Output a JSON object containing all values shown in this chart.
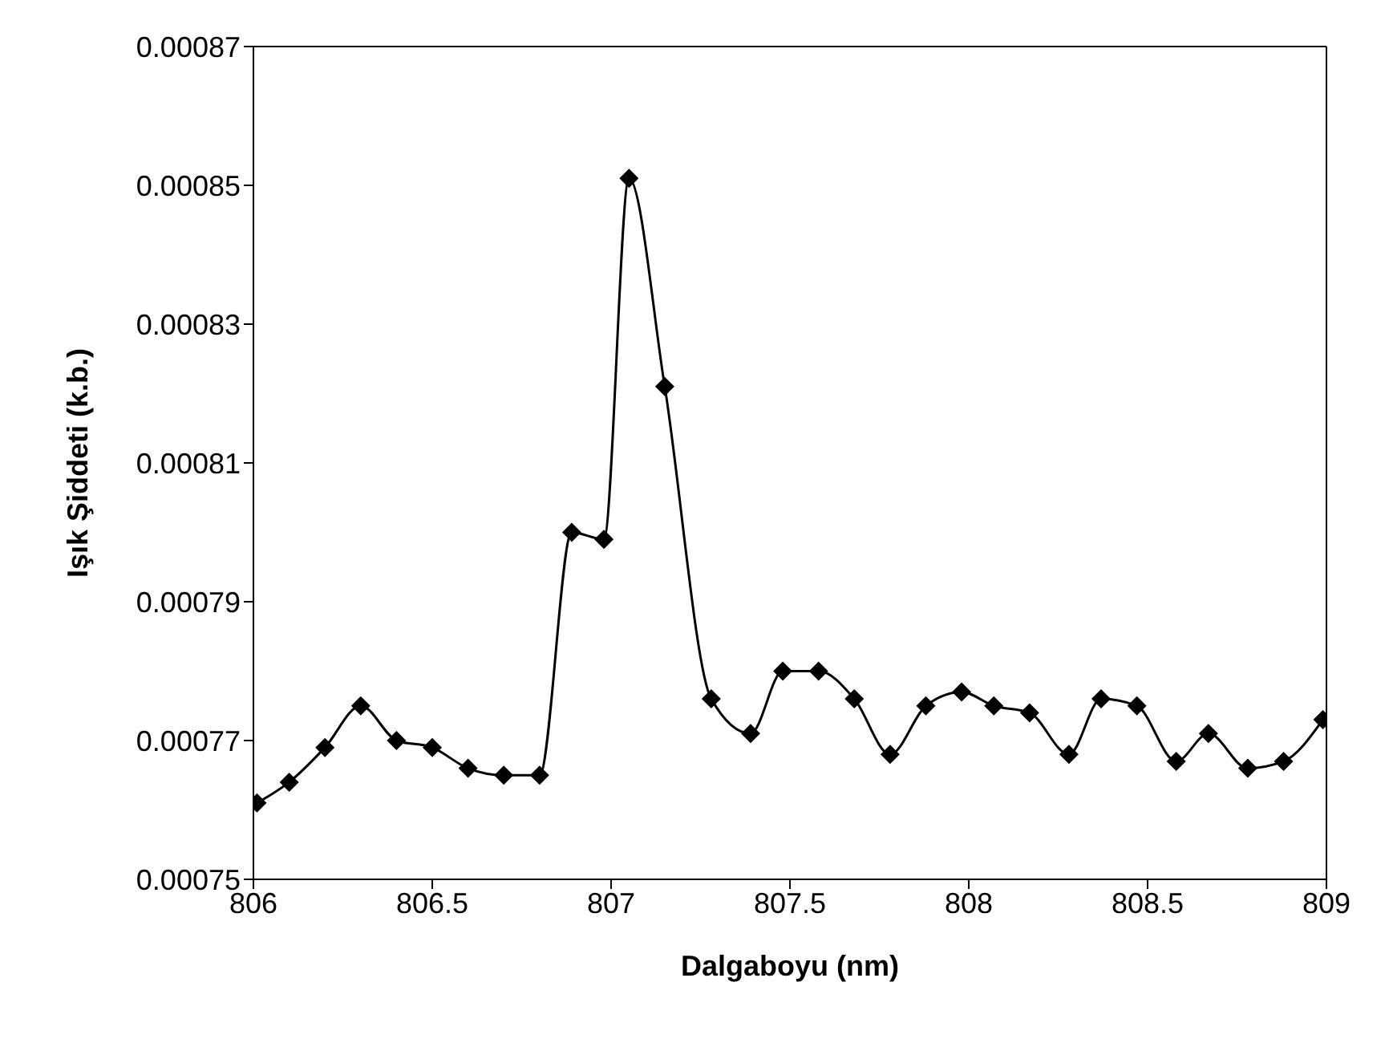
{
  "chart_data": {
    "type": "line",
    "xlabel": "Dalgaboyu (nm)",
    "ylabel": "Işık Şiddeti (k.b.)",
    "xlim": [
      806,
      809
    ],
    "xticks": [
      806,
      806.5,
      807,
      807.5,
      808,
      808.5,
      809
    ],
    "ylim": [
      0.00075,
      0.00087
    ],
    "yticks": [
      0.00075,
      0.00077,
      0.00079,
      0.00081,
      0.00083,
      0.00085,
      0.00087
    ],
    "legend": false,
    "marker": "diamond",
    "line_style": "solid",
    "series": [
      {
        "color": "#000000",
        "x": [
          806.01,
          806.1,
          806.2,
          806.3,
          806.4,
          806.5,
          806.6,
          806.7,
          806.8,
          806.89,
          806.98,
          807.05,
          807.15,
          807.28,
          807.39,
          807.48,
          807.58,
          807.68,
          807.78,
          807.88,
          807.98,
          808.07,
          808.17,
          808.28,
          808.37,
          808.47,
          808.58,
          808.67,
          808.78,
          808.88,
          808.99
        ],
        "values": [
          0.000761,
          0.000764,
          0.000769,
          0.000775,
          0.00077,
          0.000769,
          0.000766,
          0.000765,
          0.000765,
          0.0008,
          0.000799,
          0.000851,
          0.000821,
          0.000776,
          0.000771,
          0.00078,
          0.00078,
          0.000776,
          0.000768,
          0.000775,
          0.000777,
          0.000775,
          0.000774,
          0.000768,
          0.000776,
          0.000775,
          0.000767,
          0.000771,
          0.000766,
          0.000767,
          0.000773
        ]
      }
    ]
  }
}
